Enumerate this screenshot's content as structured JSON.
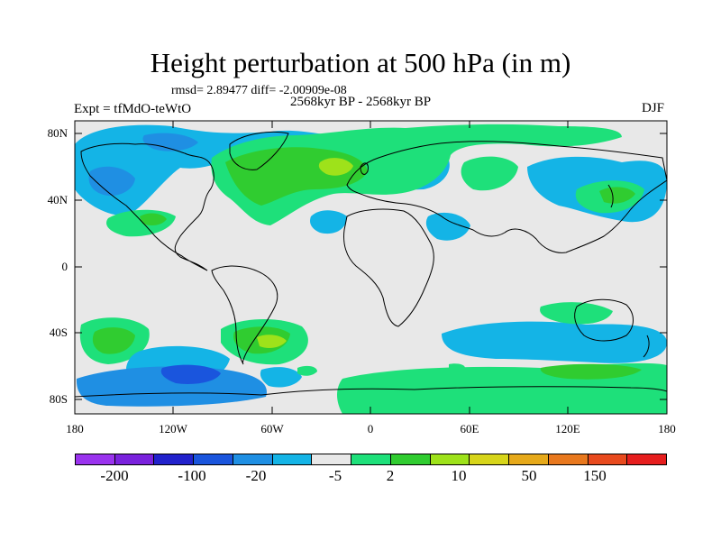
{
  "title": "Height perturbation at 500 hPa (in m)",
  "stats": "rmsd= 2.89477 diff= -2.00909e-08",
  "period": "2568kyr BP - 2568kyr BP",
  "experiment": "Expt = tfMdO-teWtO",
  "season": "DJF",
  "lat_labels": [
    "80N",
    "40N",
    "0",
    "40S",
    "80S"
  ],
  "lon_labels": [
    "180",
    "120W",
    "60W",
    "0",
    "60E",
    "120E",
    "180"
  ],
  "colorbar": {
    "colors": [
      "#9a33ee",
      "#7a22dd",
      "#2222cc",
      "#1a55dd",
      "#1f8fe3",
      "#14b4e6",
      "#e8e8e8",
      "#1ee07a",
      "#30cc30",
      "#9ee21a",
      "#d7d51a",
      "#e6a91a",
      "#e8781e",
      "#e84a1e",
      "#e61e1e"
    ],
    "labels": [
      "-200",
      "-100",
      "-20",
      "-5",
      "2",
      "10",
      "50",
      "150"
    ]
  },
  "legend_colors": {
    "neutral": "#e8e8e8",
    "light_blue": "#14b4e6",
    "mid_blue": "#1f8fe3",
    "blue": "#1a55dd",
    "light_green": "#1ee07a",
    "green": "#30cc30",
    "yellow_green": "#9ee21a"
  }
}
